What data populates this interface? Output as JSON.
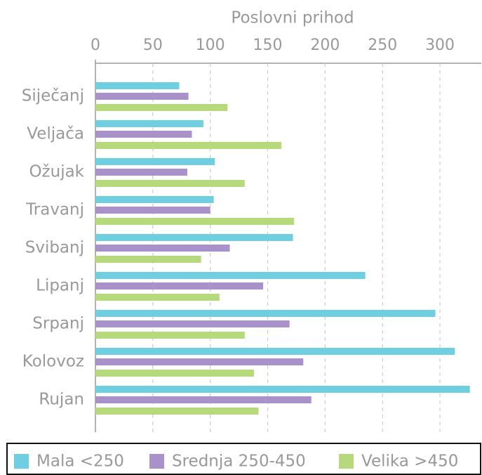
{
  "chart_data": {
    "type": "hbar",
    "x_label": "Poslovni prihod",
    "categories": [
      "Siječanj",
      "Veljača",
      "Ožujak",
      "Travanj",
      "Svibanj",
      "Lipanj",
      "Srpanj",
      "Kolovoz",
      "Rujan"
    ],
    "series": [
      {
        "name": "Mala <250",
        "color": "#6fcee0",
        "values": [
          73,
          94,
          104,
          103,
          172,
          235,
          296,
          313,
          326
        ]
      },
      {
        "name": "Srednja 250-450",
        "color": "#a992c9",
        "values": [
          81,
          84,
          80,
          100,
          117,
          146,
          169,
          181,
          188
        ]
      },
      {
        "name": "Velika >450",
        "color": "#b6d97b",
        "values": [
          115,
          162,
          130,
          173,
          92,
          108,
          130,
          138,
          142
        ]
      }
    ],
    "xlim": [
      0,
      336
    ],
    "xticks": [
      0,
      50,
      100,
      150,
      200,
      250,
      300
    ],
    "grid": true
  }
}
